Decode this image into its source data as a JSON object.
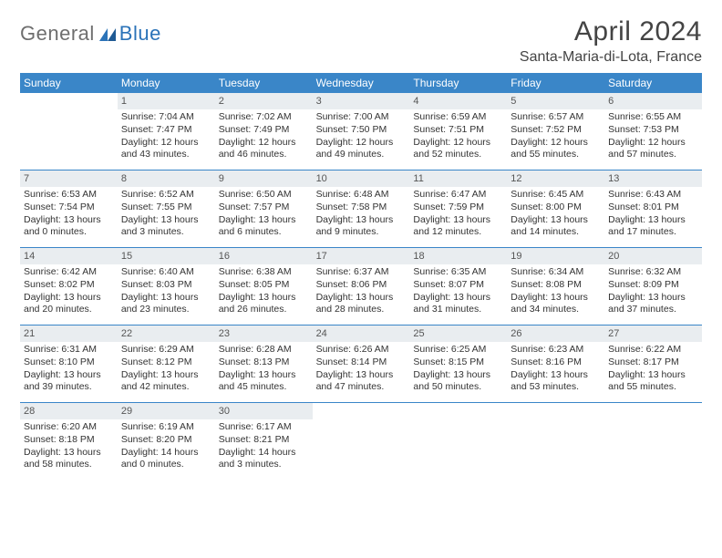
{
  "logo": {
    "general": "General",
    "blue": "Blue"
  },
  "title": "April 2024",
  "location": "Santa-Maria-di-Lota, France",
  "colors": {
    "header_bg": "#3a86c8",
    "header_text": "#ffffff",
    "daynum_bg": "#e9edf0",
    "rule": "#3a86c8",
    "text": "#333333"
  },
  "daysOfWeek": [
    "Sunday",
    "Monday",
    "Tuesday",
    "Wednesday",
    "Thursday",
    "Friday",
    "Saturday"
  ],
  "weeks": [
    [
      {
        "n": "",
        "blank": true
      },
      {
        "n": "1",
        "sunrise": "Sunrise: 7:04 AM",
        "sunset": "Sunset: 7:47 PM",
        "dl1": "Daylight: 12 hours",
        "dl2": "and 43 minutes."
      },
      {
        "n": "2",
        "sunrise": "Sunrise: 7:02 AM",
        "sunset": "Sunset: 7:49 PM",
        "dl1": "Daylight: 12 hours",
        "dl2": "and 46 minutes."
      },
      {
        "n": "3",
        "sunrise": "Sunrise: 7:00 AM",
        "sunset": "Sunset: 7:50 PM",
        "dl1": "Daylight: 12 hours",
        "dl2": "and 49 minutes."
      },
      {
        "n": "4",
        "sunrise": "Sunrise: 6:59 AM",
        "sunset": "Sunset: 7:51 PM",
        "dl1": "Daylight: 12 hours",
        "dl2": "and 52 minutes."
      },
      {
        "n": "5",
        "sunrise": "Sunrise: 6:57 AM",
        "sunset": "Sunset: 7:52 PM",
        "dl1": "Daylight: 12 hours",
        "dl2": "and 55 minutes."
      },
      {
        "n": "6",
        "sunrise": "Sunrise: 6:55 AM",
        "sunset": "Sunset: 7:53 PM",
        "dl1": "Daylight: 12 hours",
        "dl2": "and 57 minutes."
      }
    ],
    [
      {
        "n": "7",
        "sunrise": "Sunrise: 6:53 AM",
        "sunset": "Sunset: 7:54 PM",
        "dl1": "Daylight: 13 hours",
        "dl2": "and 0 minutes."
      },
      {
        "n": "8",
        "sunrise": "Sunrise: 6:52 AM",
        "sunset": "Sunset: 7:55 PM",
        "dl1": "Daylight: 13 hours",
        "dl2": "and 3 minutes."
      },
      {
        "n": "9",
        "sunrise": "Sunrise: 6:50 AM",
        "sunset": "Sunset: 7:57 PM",
        "dl1": "Daylight: 13 hours",
        "dl2": "and 6 minutes."
      },
      {
        "n": "10",
        "sunrise": "Sunrise: 6:48 AM",
        "sunset": "Sunset: 7:58 PM",
        "dl1": "Daylight: 13 hours",
        "dl2": "and 9 minutes."
      },
      {
        "n": "11",
        "sunrise": "Sunrise: 6:47 AM",
        "sunset": "Sunset: 7:59 PM",
        "dl1": "Daylight: 13 hours",
        "dl2": "and 12 minutes."
      },
      {
        "n": "12",
        "sunrise": "Sunrise: 6:45 AM",
        "sunset": "Sunset: 8:00 PM",
        "dl1": "Daylight: 13 hours",
        "dl2": "and 14 minutes."
      },
      {
        "n": "13",
        "sunrise": "Sunrise: 6:43 AM",
        "sunset": "Sunset: 8:01 PM",
        "dl1": "Daylight: 13 hours",
        "dl2": "and 17 minutes."
      }
    ],
    [
      {
        "n": "14",
        "sunrise": "Sunrise: 6:42 AM",
        "sunset": "Sunset: 8:02 PM",
        "dl1": "Daylight: 13 hours",
        "dl2": "and 20 minutes."
      },
      {
        "n": "15",
        "sunrise": "Sunrise: 6:40 AM",
        "sunset": "Sunset: 8:03 PM",
        "dl1": "Daylight: 13 hours",
        "dl2": "and 23 minutes."
      },
      {
        "n": "16",
        "sunrise": "Sunrise: 6:38 AM",
        "sunset": "Sunset: 8:05 PM",
        "dl1": "Daylight: 13 hours",
        "dl2": "and 26 minutes."
      },
      {
        "n": "17",
        "sunrise": "Sunrise: 6:37 AM",
        "sunset": "Sunset: 8:06 PM",
        "dl1": "Daylight: 13 hours",
        "dl2": "and 28 minutes."
      },
      {
        "n": "18",
        "sunrise": "Sunrise: 6:35 AM",
        "sunset": "Sunset: 8:07 PM",
        "dl1": "Daylight: 13 hours",
        "dl2": "and 31 minutes."
      },
      {
        "n": "19",
        "sunrise": "Sunrise: 6:34 AM",
        "sunset": "Sunset: 8:08 PM",
        "dl1": "Daylight: 13 hours",
        "dl2": "and 34 minutes."
      },
      {
        "n": "20",
        "sunrise": "Sunrise: 6:32 AM",
        "sunset": "Sunset: 8:09 PM",
        "dl1": "Daylight: 13 hours",
        "dl2": "and 37 minutes."
      }
    ],
    [
      {
        "n": "21",
        "sunrise": "Sunrise: 6:31 AM",
        "sunset": "Sunset: 8:10 PM",
        "dl1": "Daylight: 13 hours",
        "dl2": "and 39 minutes."
      },
      {
        "n": "22",
        "sunrise": "Sunrise: 6:29 AM",
        "sunset": "Sunset: 8:12 PM",
        "dl1": "Daylight: 13 hours",
        "dl2": "and 42 minutes."
      },
      {
        "n": "23",
        "sunrise": "Sunrise: 6:28 AM",
        "sunset": "Sunset: 8:13 PM",
        "dl1": "Daylight: 13 hours",
        "dl2": "and 45 minutes."
      },
      {
        "n": "24",
        "sunrise": "Sunrise: 6:26 AM",
        "sunset": "Sunset: 8:14 PM",
        "dl1": "Daylight: 13 hours",
        "dl2": "and 47 minutes."
      },
      {
        "n": "25",
        "sunrise": "Sunrise: 6:25 AM",
        "sunset": "Sunset: 8:15 PM",
        "dl1": "Daylight: 13 hours",
        "dl2": "and 50 minutes."
      },
      {
        "n": "26",
        "sunrise": "Sunrise: 6:23 AM",
        "sunset": "Sunset: 8:16 PM",
        "dl1": "Daylight: 13 hours",
        "dl2": "and 53 minutes."
      },
      {
        "n": "27",
        "sunrise": "Sunrise: 6:22 AM",
        "sunset": "Sunset: 8:17 PM",
        "dl1": "Daylight: 13 hours",
        "dl2": "and 55 minutes."
      }
    ],
    [
      {
        "n": "28",
        "sunrise": "Sunrise: 6:20 AM",
        "sunset": "Sunset: 8:18 PM",
        "dl1": "Daylight: 13 hours",
        "dl2": "and 58 minutes."
      },
      {
        "n": "29",
        "sunrise": "Sunrise: 6:19 AM",
        "sunset": "Sunset: 8:20 PM",
        "dl1": "Daylight: 14 hours",
        "dl2": "and 0 minutes."
      },
      {
        "n": "30",
        "sunrise": "Sunrise: 6:17 AM",
        "sunset": "Sunset: 8:21 PM",
        "dl1": "Daylight: 14 hours",
        "dl2": "and 3 minutes."
      },
      {
        "n": "",
        "blank": true
      },
      {
        "n": "",
        "blank": true
      },
      {
        "n": "",
        "blank": true
      },
      {
        "n": "",
        "blank": true
      }
    ]
  ]
}
